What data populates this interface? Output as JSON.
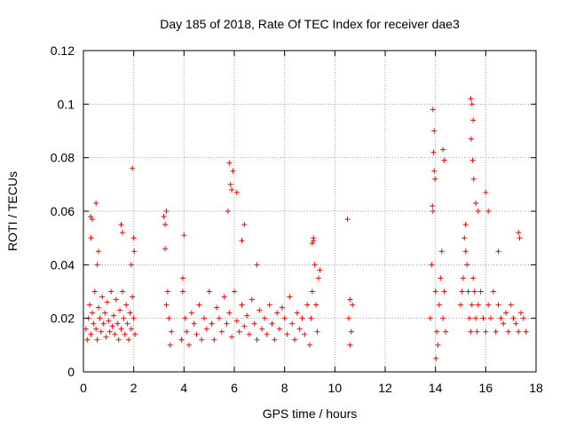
{
  "chart_data": {
    "type": "scatter",
    "title": "Day 185 of 2018, Rate Of TEC Index for receiver dae3",
    "xlabel": "GPS time / hours",
    "ylabel": "ROTI / TECUs",
    "xlim": [
      0,
      18
    ],
    "ylim": [
      0,
      0.12
    ],
    "x_ticks": [
      0,
      2,
      4,
      6,
      8,
      10,
      12,
      14,
      16,
      18
    ],
    "x_tick_labels": [
      "0",
      "2",
      "4",
      "6",
      "8",
      "10",
      "12",
      "14",
      "16",
      "18"
    ],
    "y_ticks": [
      0,
      0.02,
      0.04,
      0.06,
      0.08,
      0.1,
      0.12
    ],
    "y_tick_labels": [
      "0",
      "0.02",
      "0.04",
      "0.06",
      "0.08",
      "0.1",
      "0.12"
    ],
    "grid": true,
    "marker": "+",
    "color": "#ff0000",
    "series": [
      {
        "name": "ROTI",
        "x": [
          0.1,
          0.15,
          0.2,
          0.25,
          0.3,
          0.35,
          0.4,
          0.45,
          0.5,
          0.55,
          0.6,
          0.65,
          0.7,
          0.75,
          0.8,
          0.85,
          0.9,
          0.95,
          1.0,
          1.05,
          1.1,
          1.15,
          1.2,
          1.25,
          1.3,
          1.35,
          1.4,
          1.45,
          1.5,
          1.55,
          1.6,
          1.65,
          1.7,
          1.75,
          1.8,
          1.85,
          1.9,
          1.95,
          2.0,
          2.05,
          0.28,
          0.3,
          0.35,
          0.5,
          0.55,
          0.6,
          1.5,
          1.55,
          1.95,
          2.0,
          2.02,
          1.9,
          3.2,
          3.25,
          3.3,
          3.35,
          3.4,
          3.45,
          3.5,
          3.25,
          3.3,
          3.9,
          3.95,
          4.0,
          4.05,
          4.1,
          4.2,
          4.3,
          4.4,
          4.5,
          4.6,
          4.7,
          4.8,
          4.9,
          5.0,
          5.1,
          5.2,
          5.3,
          5.4,
          5.5,
          5.6,
          5.7,
          5.8,
          5.9,
          6.0,
          6.1,
          6.2,
          6.3,
          6.4,
          6.5,
          6.6,
          6.7,
          6.8,
          6.9,
          7.0,
          7.1,
          7.2,
          7.3,
          7.4,
          7.5,
          7.6,
          7.7,
          7.8,
          7.9,
          8.0,
          8.1,
          8.2,
          8.3,
          8.4,
          8.5,
          8.6,
          8.7,
          8.8,
          8.9,
          3.95,
          5.8,
          5.85,
          5.9,
          5.75,
          5.95,
          6.1,
          6.3,
          6.4,
          6.9,
          9.0,
          9.05,
          9.1,
          9.15,
          9.2,
          9.25,
          9.3,
          9.35,
          9.4,
          9.1,
          9.15,
          10.5,
          10.55,
          10.6,
          10.65,
          10.7,
          10.6,
          13.8,
          13.85,
          13.9,
          13.95,
          14.0,
          14.05,
          14.1,
          14.15,
          14.2,
          14.25,
          14.3,
          14.35,
          14.4,
          13.9,
          13.95,
          13.92,
          13.98,
          14.3,
          14.35,
          13.88,
          14.02,
          15.0,
          15.05,
          15.1,
          15.15,
          15.2,
          15.25,
          15.3,
          15.35,
          15.4,
          15.45,
          15.5,
          15.55,
          15.6,
          15.65,
          15.7,
          15.8,
          15.9,
          16.0,
          16.1,
          16.2,
          16.3,
          16.4,
          16.5,
          16.6,
          16.7,
          16.8,
          16.9,
          17.0,
          17.1,
          17.2,
          17.3,
          17.4,
          17.5,
          17.6,
          15.4,
          15.45,
          15.5,
          15.42,
          15.48,
          15.52,
          15.6,
          15.7,
          16.0,
          16.1,
          16.5,
          17.3,
          17.35,
          15.2
        ],
        "y": [
          0.016,
          0.012,
          0.02,
          0.025,
          0.014,
          0.022,
          0.018,
          0.03,
          0.016,
          0.012,
          0.024,
          0.02,
          0.015,
          0.028,
          0.018,
          0.022,
          0.013,
          0.026,
          0.019,
          0.015,
          0.03,
          0.017,
          0.021,
          0.014,
          0.027,
          0.018,
          0.012,
          0.023,
          0.016,
          0.03,
          0.02,
          0.014,
          0.025,
          0.018,
          0.012,
          0.022,
          0.016,
          0.028,
          0.02,
          0.014,
          0.058,
          0.05,
          0.057,
          0.063,
          0.04,
          0.045,
          0.055,
          0.052,
          0.076,
          0.05,
          0.045,
          0.04,
          0.058,
          0.046,
          0.06,
          0.03,
          0.02,
          0.01,
          0.015,
          0.055,
          0.025,
          0.012,
          0.03,
          0.051,
          0.02,
          0.015,
          0.01,
          0.022,
          0.018,
          0.014,
          0.025,
          0.012,
          0.02,
          0.016,
          0.03,
          0.018,
          0.012,
          0.024,
          0.02,
          0.015,
          0.028,
          0.018,
          0.022,
          0.013,
          0.03,
          0.019,
          0.015,
          0.025,
          0.017,
          0.021,
          0.014,
          0.027,
          0.018,
          0.012,
          0.023,
          0.016,
          0.02,
          0.014,
          0.025,
          0.018,
          0.012,
          0.022,
          0.016,
          0.024,
          0.02,
          0.014,
          0.028,
          0.018,
          0.012,
          0.022,
          0.016,
          0.02,
          0.014,
          0.025,
          0.035,
          0.078,
          0.07,
          0.068,
          0.06,
          0.075,
          0.067,
          0.049,
          0.055,
          0.04,
          0.01,
          0.02,
          0.03,
          0.049,
          0.04,
          0.025,
          0.015,
          0.035,
          0.038,
          0.048,
          0.05,
          0.057,
          0.02,
          0.01,
          0.015,
          0.025,
          0.027,
          0.02,
          0.04,
          0.06,
          0.075,
          0.03,
          0.015,
          0.01,
          0.025,
          0.035,
          0.045,
          0.02,
          0.03,
          0.015,
          0.098,
          0.09,
          0.082,
          0.072,
          0.083,
          0.079,
          0.062,
          0.005,
          0.025,
          0.03,
          0.035,
          0.05,
          0.045,
          0.04,
          0.03,
          0.02,
          0.015,
          0.025,
          0.035,
          0.03,
          0.02,
          0.015,
          0.025,
          0.03,
          0.02,
          0.015,
          0.025,
          0.02,
          0.03,
          0.015,
          0.025,
          0.02,
          0.018,
          0.022,
          0.015,
          0.025,
          0.02,
          0.018,
          0.015,
          0.022,
          0.02,
          0.015,
          0.102,
          0.1,
          0.094,
          0.087,
          0.079,
          0.072,
          0.063,
          0.06,
          0.067,
          0.06,
          0.045,
          0.052,
          0.05,
          0.055
        ]
      }
    ]
  }
}
